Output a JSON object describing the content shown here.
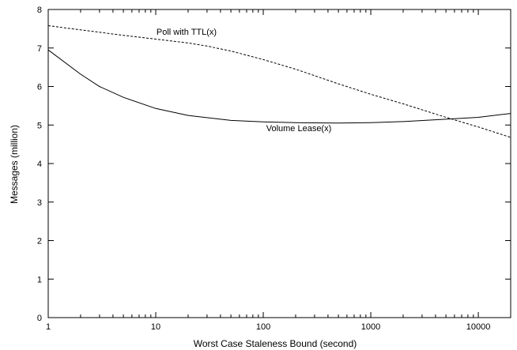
{
  "chart_data": {
    "type": "line",
    "xscale": "log",
    "xlabel": "Worst Case Staleness Bound (second)",
    "ylabel": "Messages (million)",
    "xlim": [
      1,
      20000
    ],
    "ylim": [
      0,
      8
    ],
    "x_ticks": [
      1,
      10,
      100,
      1000,
      10000
    ],
    "x_tick_labels": [
      "1",
      "10",
      "100",
      "1000",
      "10000"
    ],
    "y_ticks": [
      0,
      1,
      2,
      3,
      4,
      5,
      6,
      7,
      8
    ],
    "y_tick_labels": [
      "0",
      "1",
      "2",
      "3",
      "4",
      "5",
      "6",
      "7",
      "8"
    ],
    "grid": false,
    "series": [
      {
        "name": "Poll with TTL(x)",
        "style": "dashed",
        "color": "#000000",
        "x": [
          1,
          2,
          5,
          10,
          20,
          30,
          50,
          100,
          200,
          500,
          1000,
          2000,
          5000,
          10000,
          20000
        ],
        "y": [
          7.58,
          7.47,
          7.33,
          7.23,
          7.13,
          7.05,
          6.92,
          6.7,
          6.45,
          6.07,
          5.8,
          5.55,
          5.2,
          4.95,
          4.68
        ]
      },
      {
        "name": "Volume Lease(x)",
        "style": "solid",
        "color": "#000000",
        "x": [
          1,
          2,
          3,
          5,
          10,
          20,
          50,
          100,
          200,
          500,
          1000,
          2000,
          5000,
          10000,
          20000
        ],
        "y": [
          6.95,
          6.32,
          6.0,
          5.72,
          5.43,
          5.25,
          5.12,
          5.08,
          5.06,
          5.05,
          5.06,
          5.09,
          5.15,
          5.2,
          5.3
        ]
      }
    ],
    "annotations": [
      {
        "text": "Poll with TTL(x)",
        "series": 0
      },
      {
        "text": "Volume Lease(x)",
        "series": 1
      }
    ]
  }
}
